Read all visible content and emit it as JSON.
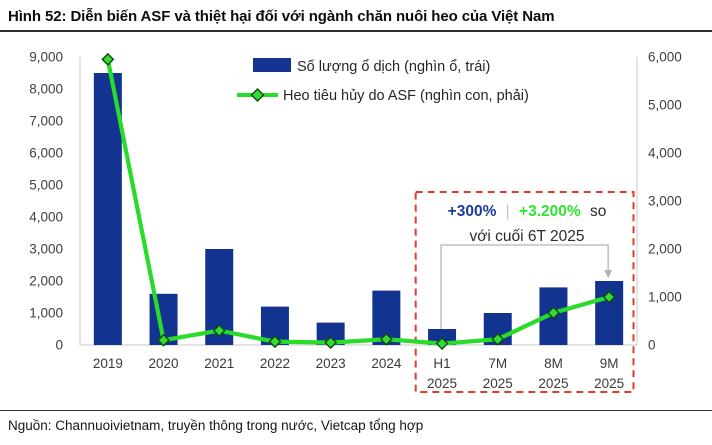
{
  "figure": {
    "title": "Hình 52: Diễn biến ASF và thiệt hại đối với ngành chăn nuôi heo của Việt Nam",
    "source": "Nguồn: Channuoivietnam, truyền thông trong nước, Vietcap tổng hợp"
  },
  "colors": {
    "bar_navy": "#133391",
    "line_green": "#29DC29",
    "marker_fill": "#35DB35",
    "marker_stroke": "#0C4A0C",
    "text_navy": "#1B3C9E",
    "text_green": "#2EE42E",
    "separator_gray": "#C8C8C8",
    "highlight_red": "#E03B2C",
    "bracket_gray": "#B3B3B3",
    "axis_line": "#D8D8D8"
  },
  "chart_data": {
    "type": "combo-bar-line",
    "categories": [
      "2019",
      "2020",
      "2021",
      "2022",
      "2023",
      "2024",
      "H1 2025",
      "7M 2025",
      "8M 2025",
      "9M 2025"
    ],
    "series": [
      {
        "name": "Số lượng ổ dịch (nghìn ổ, trái)",
        "type": "bar",
        "axis": "left",
        "values": [
          8500,
          1600,
          3000,
          1200,
          700,
          1700,
          500,
          1000,
          1800,
          2000
        ]
      },
      {
        "name": "Heo tiêu hủy do ASF (nghìn con, phải)",
        "type": "line",
        "axis": "right",
        "values": [
          5950,
          100,
          300,
          70,
          50,
          120,
          30,
          120,
          670,
          1000
        ]
      }
    ],
    "left_axis": {
      "min": 0,
      "max": 9000,
      "step": 1000,
      "tick_labels": [
        "9,000",
        "8,000",
        "7,000",
        "6,000",
        "5,000",
        "4,000",
        "3,000",
        "2,000",
        "1,000",
        "0"
      ]
    },
    "right_axis": {
      "min": 0,
      "max": 6000,
      "step": 1000,
      "tick_labels": [
        "6,000",
        "5,000",
        "4,000",
        "3,000",
        "2,000",
        "1,000",
        "0"
      ]
    },
    "grid": false,
    "legend_position": "top-center",
    "highlight": {
      "categories": [
        "H1 2025",
        "7M 2025",
        "8M 2025",
        "9M 2025"
      ]
    },
    "annotation": {
      "bar_change": "+300%",
      "separator": "|",
      "line_change": "+3.200%",
      "suffix": "so",
      "line2": "với cuối 6T 2025",
      "applies_to": "H1 2025 → 9M 2025"
    }
  }
}
